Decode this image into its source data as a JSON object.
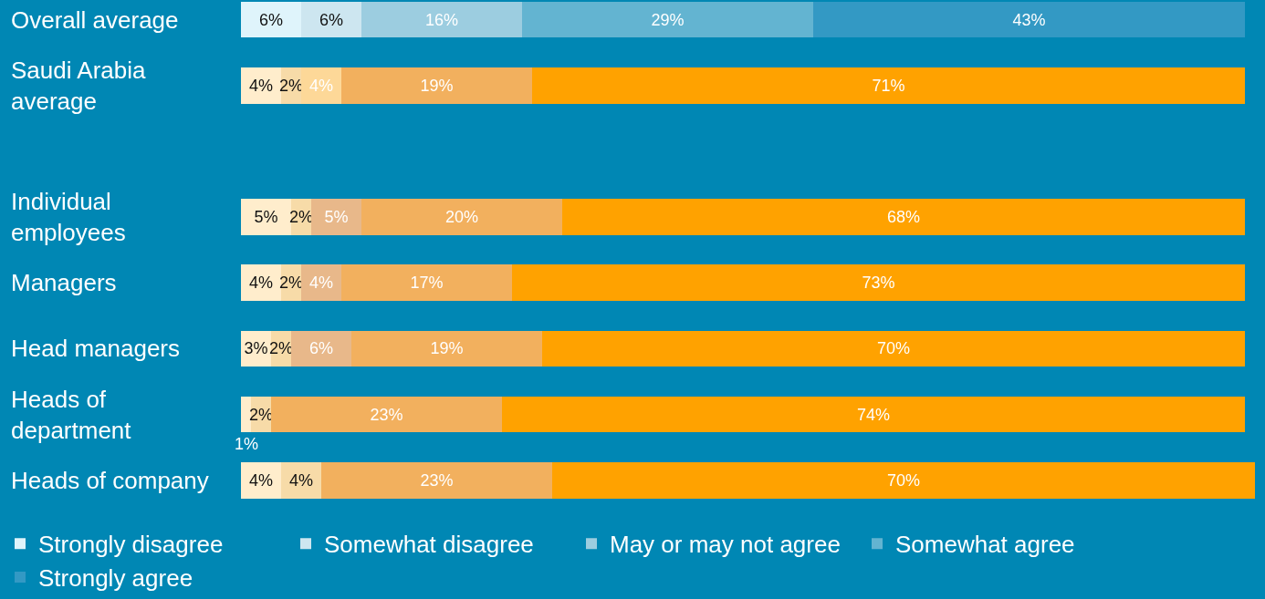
{
  "chart_data": {
    "type": "bar",
    "orientation": "horizontal",
    "stacked": true,
    "legend": "bottom",
    "grid": false,
    "tick_labels": "y",
    "categories": [
      "Overall average",
      "Saudi Arabia average",
      null,
      "Individual employees",
      "Managers",
      "Head managers",
      "Heads of department",
      "Heads of company"
    ],
    "series": [
      {
        "name": "Strongly disagree",
        "color": "#dff4fb",
        "values": [
          6,
          4,
          null,
          5,
          4,
          3,
          1,
          4
        ],
        "value_labels": [
          "6%",
          "4%",
          null,
          "5%",
          "4%",
          "3%",
          "1%",
          "4%"
        ],
        "colors": [
          "#dff4fb",
          "#ffedcc",
          null,
          "#ffedcc",
          "#ffedcc",
          "#ffedcc",
          "#ffedcc",
          "#ffedcc"
        ]
      },
      {
        "name": "Somewhat disagree",
        "color": "#cde6f0",
        "values": [
          6,
          2,
          null,
          2,
          2,
          2,
          2,
          4
        ],
        "value_labels": [
          "6%",
          "2%",
          null,
          "2%",
          "2%",
          "2%",
          "2%",
          "4%"
        ],
        "colors": [
          "#cde6f0",
          "#f7dba8",
          null,
          "#f7dba8",
          "#f7dba8",
          "#f7dba8",
          "#f7dba8",
          "#f7dba8"
        ]
      },
      {
        "name": "May or may not agree",
        "color": "#9ccde0",
        "values": [
          16,
          4,
          null,
          5,
          4,
          6,
          null,
          null
        ],
        "value_labels": [
          "16%",
          "4%",
          null,
          "5%",
          "4%",
          "6%",
          null,
          null
        ],
        "colors": [
          "#9ccde0",
          "#fdd898",
          null,
          "#e8b88a",
          "#e8b88a",
          "#e8b88a",
          null,
          null
        ]
      },
      {
        "name": "Somewhat agree",
        "color": "#63b4d1",
        "values": [
          29,
          19,
          null,
          20,
          17,
          19,
          23,
          23
        ],
        "value_labels": [
          "29%",
          "19%",
          null,
          "20%",
          "17%",
          "19%",
          "23%",
          "23%"
        ],
        "colors": [
          "#63b4d1",
          "#f2b05e",
          null,
          "#f2b05e",
          "#f2b05e",
          "#f2b05e",
          "#f2b05e",
          "#f2b05e"
        ]
      },
      {
        "name": "Strongly agree",
        "color": "#3399c4",
        "values": [
          43,
          71,
          null,
          68,
          73,
          70,
          74,
          70
        ],
        "value_labels": [
          "43%",
          "71%",
          null,
          "68%",
          "73%",
          "70%",
          "74%",
          "70%"
        ],
        "colors": [
          "#3399c4",
          "#ffa200",
          null,
          "#ffa200",
          "#ffa200",
          "#ffa200",
          "#ffa200",
          "#ffa200"
        ]
      }
    ]
  }
}
